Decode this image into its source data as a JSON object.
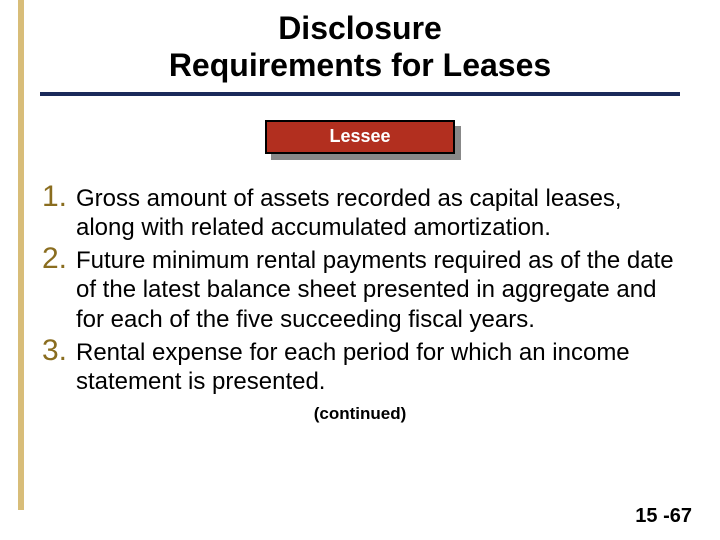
{
  "title": {
    "line1": "Disclosure",
    "line2": "Requirements for Leases",
    "fontsize": 32,
    "rule_color": "#1a2a5a"
  },
  "leftbar": {
    "color": "#b8860b",
    "opacity": 0.55
  },
  "badge": {
    "label": "Lessee",
    "bg": "#b22f1f",
    "shadow": "#888888",
    "text_color": "#ffffff"
  },
  "list": {
    "number_color": "#8a6d1f",
    "number_fontsize": 30,
    "text_fontsize": 24,
    "items": [
      {
        "n": "1.",
        "text": "Gross amount of assets recorded as capital leases, along with related accumulated amortization."
      },
      {
        "n": "2.",
        "text": "Future minimum rental payments required as of the date of the latest balance sheet presented in aggregate and for each of the five succeeding fiscal years."
      },
      {
        "n": "3.",
        "text": "Rental expense for each period for which an income statement is presented."
      }
    ]
  },
  "continued": "(continued)",
  "pagenum": "15 -67"
}
